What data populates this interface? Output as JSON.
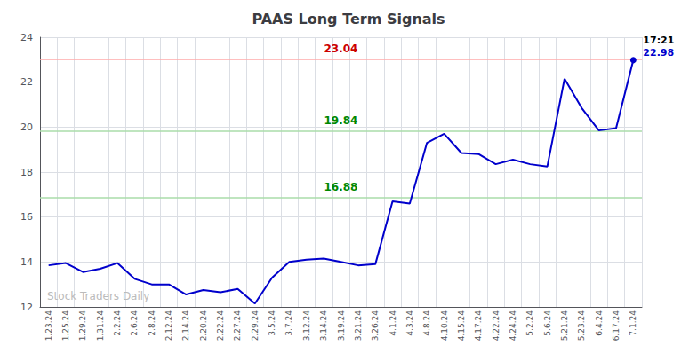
{
  "chart_data": {
    "type": "line",
    "title": "PAAS Long Term Signals",
    "categories": [
      "1.23.24",
      "1.25.24",
      "1.29.24",
      "1.31.24",
      "2.2.24",
      "2.6.24",
      "2.8.24",
      "2.12.24",
      "2.14.24",
      "2.20.24",
      "2.22.24",
      "2.27.24",
      "2.29.24",
      "3.5.24",
      "3.7.24",
      "3.12.24",
      "3.14.24",
      "3.19.24",
      "3.21.24",
      "3.26.24",
      "4.1.24",
      "4.3.24",
      "4.8.24",
      "4.10.24",
      "4.15.24",
      "4.17.24",
      "4.22.24",
      "4.24.24",
      "5.2.24",
      "5.6.24",
      "5.21.24",
      "5.23.24",
      "6.4.24",
      "6.17.24",
      "7.1.24"
    ],
    "values": [
      13.85,
      13.95,
      13.55,
      13.7,
      13.95,
      13.25,
      13.0,
      13.0,
      12.55,
      12.75,
      12.65,
      12.8,
      12.15,
      13.3,
      14.0,
      14.1,
      14.15,
      14.0,
      13.85,
      13.9,
      16.7,
      16.6,
      19.3,
      19.7,
      18.85,
      18.8,
      18.35,
      18.55,
      18.35,
      18.25,
      22.15,
      20.85,
      19.85,
      19.95,
      22.98
    ],
    "color": "#0000cc",
    "marker": "last",
    "ylim": [
      12,
      24
    ],
    "yticks": [
      12,
      14,
      16,
      18,
      20,
      22,
      24
    ],
    "grid": true,
    "hlines": [
      {
        "value": 23.04,
        "label": "23.04",
        "color": "#ffaaaa",
        "label_color": "#cc0000"
      },
      {
        "value": 19.84,
        "label": "19.84",
        "color": "#aaddaa",
        "label_color": "#008800"
      },
      {
        "value": 16.88,
        "label": "16.88",
        "color": "#aaddaa",
        "label_color": "#008800"
      }
    ],
    "annotations": [
      {
        "text": "17:21",
        "color": "#000000"
      },
      {
        "text": "22.98",
        "color": "#0000cc"
      }
    ],
    "watermark": {
      "text": "Stock Traders Daily",
      "color": "#bbbbbb"
    }
  }
}
